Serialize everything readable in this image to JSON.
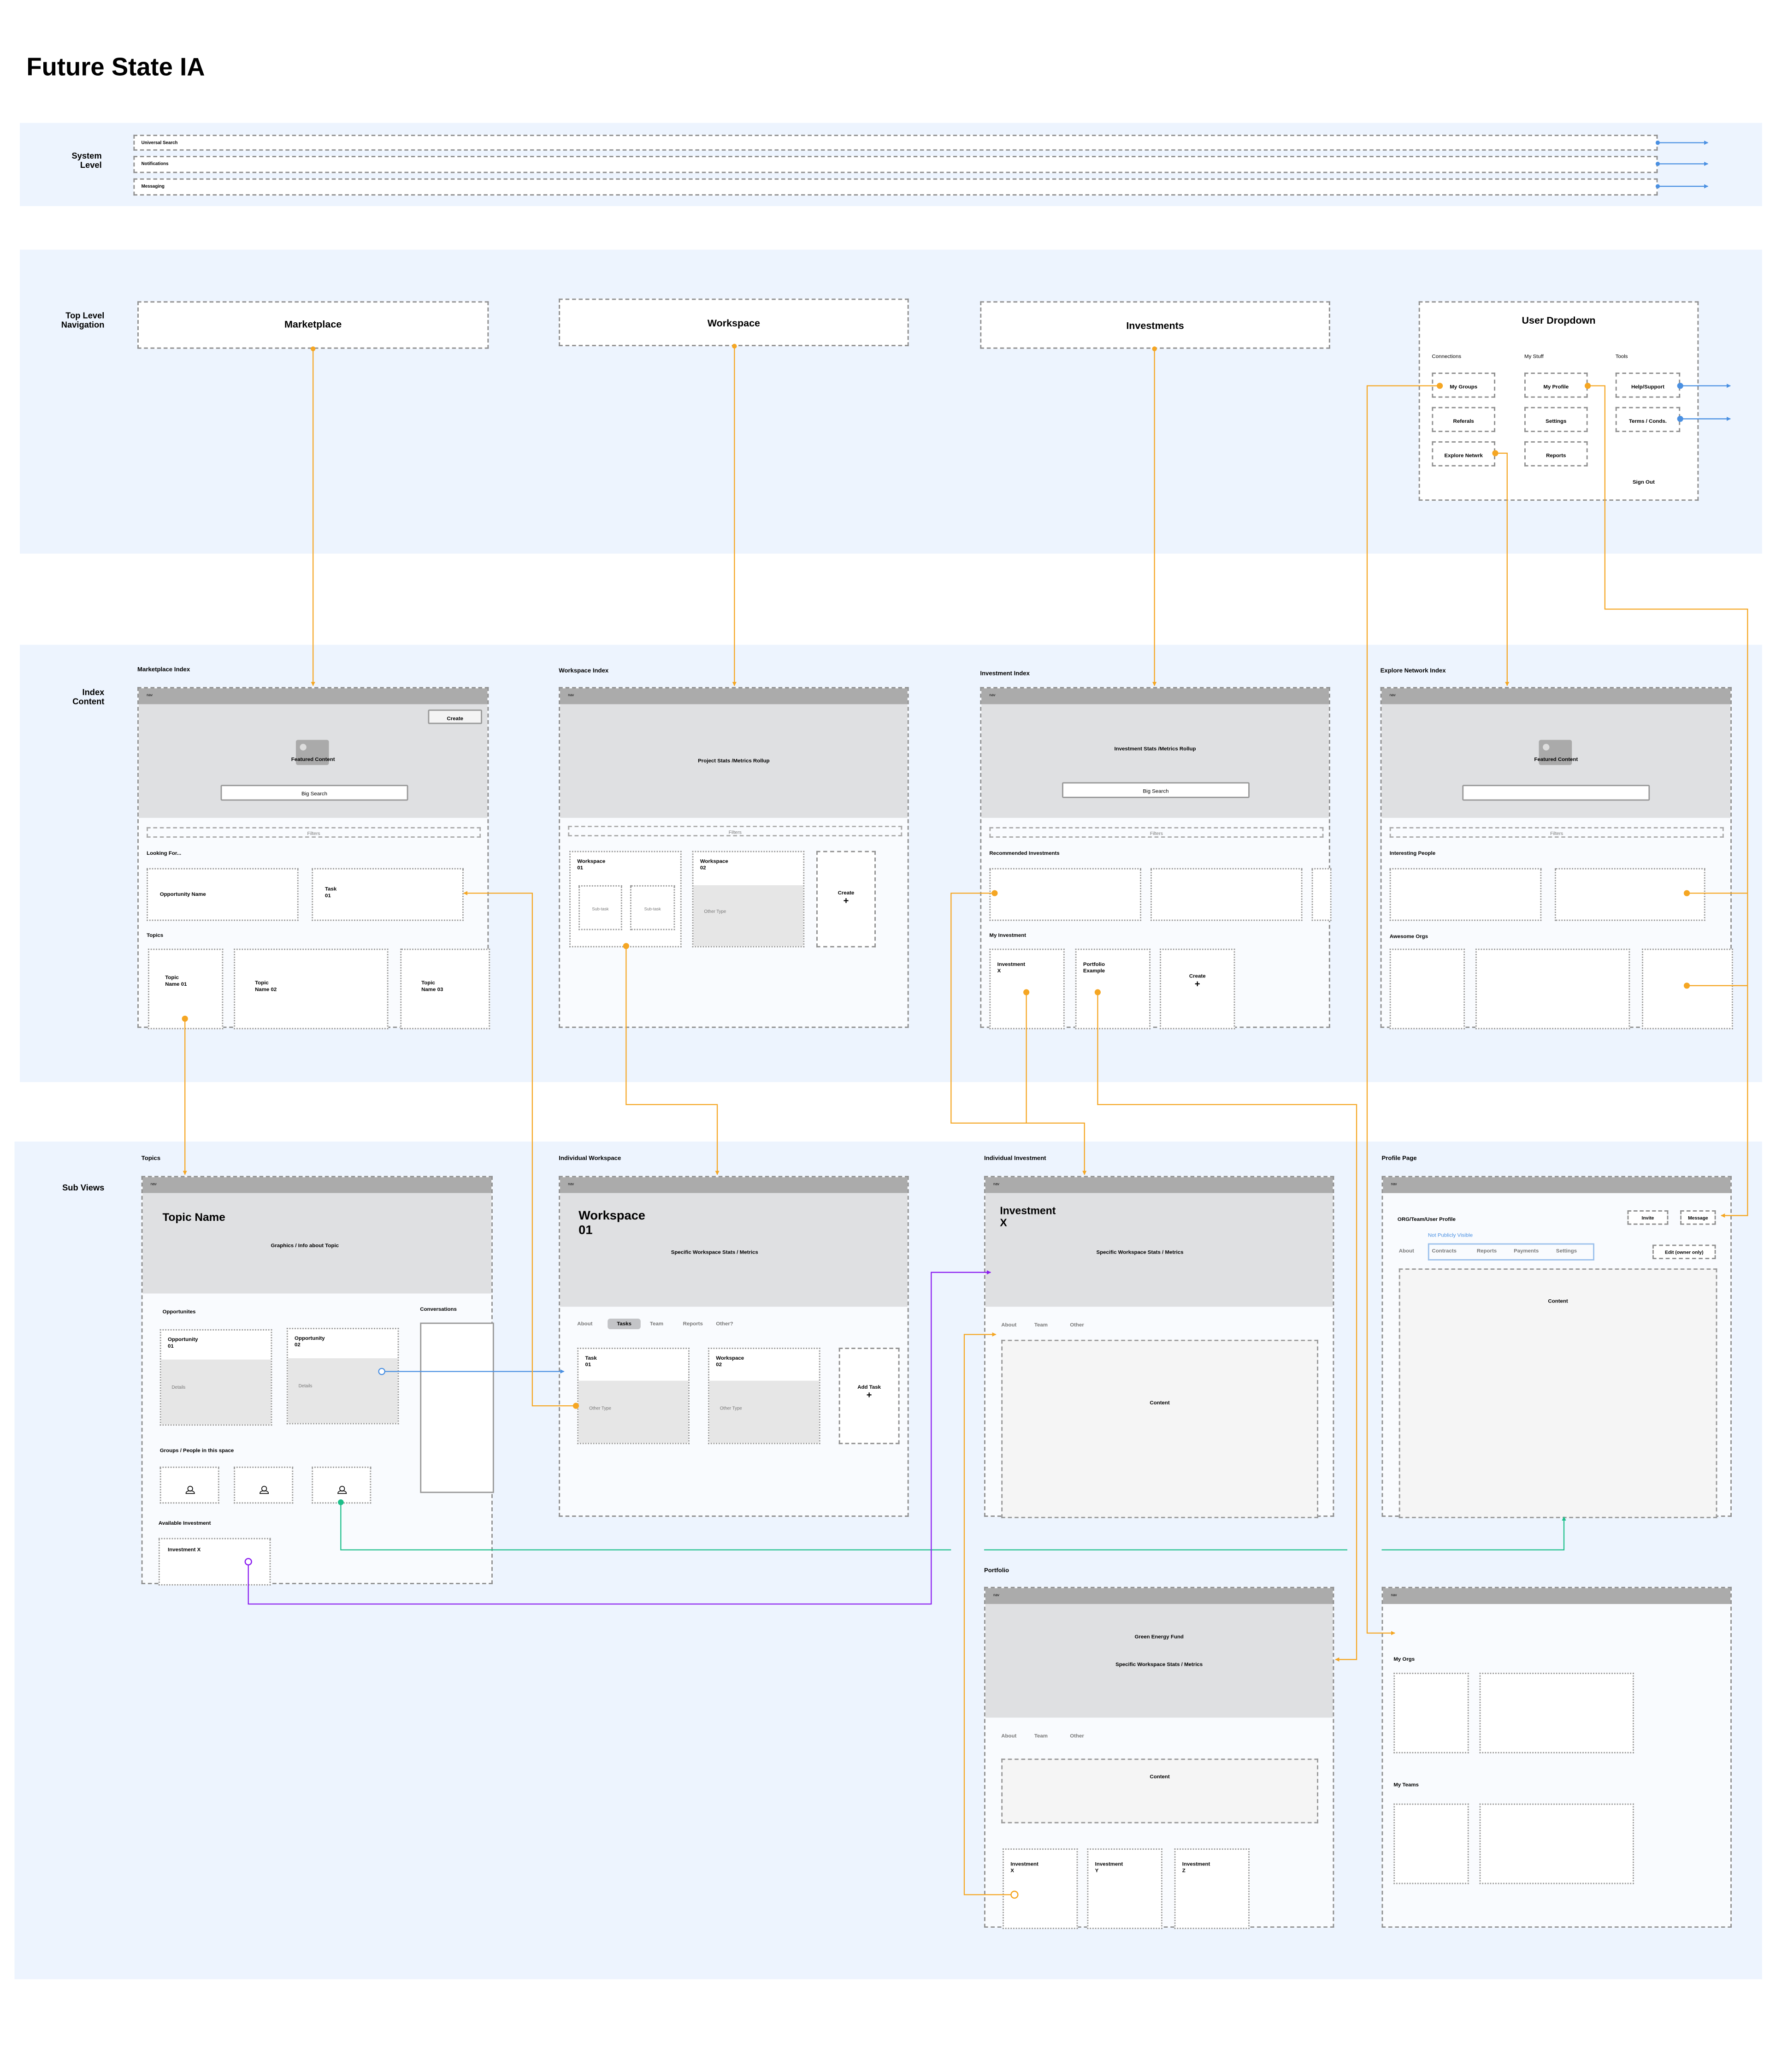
{
  "title": "Future State IA",
  "nav_label": "nav",
  "colors": {
    "band": "#edf4fe",
    "orange": "#f5a623",
    "blue": "#4a90e2",
    "green": "#1dbf8a",
    "purple": "#8b1ef0",
    "nav": "#ababab",
    "hero": "#dfe0e2"
  },
  "system": {
    "label_1": "System",
    "label_2": "Level",
    "rows": [
      "Universal Search",
      "Notifications",
      "Messaging"
    ]
  },
  "top_nav": {
    "label_1": "Top Level",
    "label_2": "Navigation",
    "items": [
      "Marketplace",
      "Workspace",
      "Investments"
    ],
    "user_dropdown": {
      "title": "User Dropdown",
      "columns": [
        {
          "heading": "Connections",
          "items": [
            "My Groups",
            "Referals",
            "Explore Netwrk"
          ]
        },
        {
          "heading": "My Stuff",
          "items": [
            "My Profile",
            "Settings",
            "Reports"
          ]
        },
        {
          "heading": "Tools",
          "items": [
            "Help/Support",
            "Terms / Conds."
          ]
        }
      ],
      "sign_out": "Sign Out"
    }
  },
  "index": {
    "label_1": "Index",
    "label_2": "Content",
    "marketplace": {
      "title": "Marketplace Index",
      "create": "Create",
      "featured": "Featured Content",
      "search": "Big Search",
      "filters": "Filters",
      "looking_for": "Looking For...",
      "opportunity": "Opportunity Name",
      "task_1": "Task",
      "task_2": "01",
      "topics": "Topics",
      "topic_cards": [
        [
          "Topic",
          "Name 01"
        ],
        [
          "Topic",
          "Name 02"
        ],
        [
          "Topic",
          "Name 03"
        ]
      ]
    },
    "workspace": {
      "title": "Workspace Index",
      "hero": "Project Stats /Metrics Rollup",
      "filters": "Filters",
      "cards": [
        [
          "Workspace",
          "01"
        ],
        [
          "Workspace",
          "02"
        ]
      ],
      "subtask": "Sub-task",
      "other_type": "Other Type",
      "create": "Create"
    },
    "investment": {
      "title": "Investment Index",
      "hero": "Investment Stats /Metrics Rollup",
      "search": "Big Search",
      "filters": "Filters",
      "recommended": "Recommended Investments",
      "my_investment": "My Investment",
      "cards": [
        [
          "Investment",
          "X"
        ],
        [
          "Portfolio",
          "Example"
        ]
      ],
      "create": "Create"
    },
    "explore": {
      "title": "Explore Network Index",
      "featured": "Featured Content",
      "filters": "Filters",
      "people": "Interesting People",
      "orgs": "Awesome Orgs"
    }
  },
  "sub_views": {
    "label": "Sub Views",
    "topics": {
      "title": "Topics",
      "name": "Topic Name",
      "hero": "Graphics / Info about Topic",
      "opportunities": "Opportunites",
      "opp_cards": [
        [
          "Opportunity",
          "01"
        ],
        [
          "Opportunity",
          "02"
        ]
      ],
      "details": "Details",
      "conversations": "Conversations",
      "groups": "Groups / People in this space",
      "available": "Available Investment",
      "investment": "Investment X"
    },
    "workspace": {
      "title": "Individual Workspace",
      "name_1": "Workspace",
      "name_2": "01",
      "hero": "Specific Workspace Stats / Metrics",
      "tabs": [
        "About",
        "Tasks",
        "Team",
        "Reports",
        "Other?"
      ],
      "active_tab": "Tasks",
      "cards": [
        [
          "Task",
          "01"
        ],
        [
          "Workspace",
          "02"
        ]
      ],
      "other_type": "Other Type",
      "add_task": "Add Task"
    },
    "investment": {
      "title": "Individual Investment",
      "name_1": "Investment",
      "name_2": "X",
      "hero": "Specific Workspace Stats / Metrics",
      "tabs": [
        "About",
        "Team",
        "Other"
      ],
      "content": "Content"
    },
    "profile": {
      "title": "Profile Page",
      "heading": "ORG/Team/User Profile",
      "invite": "Invite",
      "message": "Message",
      "not_public": "Not Publicly Visible",
      "tabs": [
        "About",
        "Contracts",
        "Reports",
        "Payments",
        "Settings"
      ],
      "edit": "Edit (owner only)",
      "content": "Content"
    },
    "portfolio": {
      "title": "Portfolio",
      "fund": "Green Energy Fund",
      "hero": "Specific Workspace Stats / Metrics",
      "tabs": [
        "About",
        "Team",
        "Other"
      ],
      "content": "Content",
      "cards": [
        [
          "Investment",
          "X"
        ],
        [
          "Investment",
          "Y"
        ],
        [
          "Investment",
          "Z"
        ]
      ]
    },
    "my_orgs": {
      "orgs": "My Orgs",
      "teams": "My Teams"
    }
  }
}
